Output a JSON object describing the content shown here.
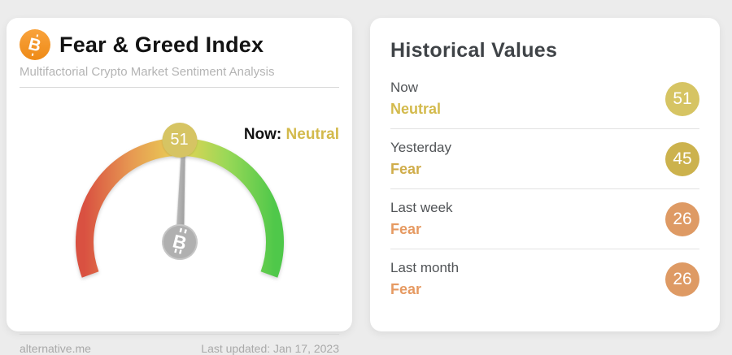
{
  "page": {
    "background_color": "#ececec"
  },
  "gauge_card": {
    "title": "Fear & Greed Index",
    "subtitle": "Multifactorial Crypto Market Sentiment Analysis",
    "now_label": "Now:",
    "now_sentiment": "Neutral",
    "now_sentiment_color": "#d3ba4c",
    "value": 51,
    "value_badge_color": "#d6c463",
    "footer_left": "alternative.me",
    "footer_right": "Last updated: Jan 17, 2023",
    "bitcoin_brand_color": "#f7931a",
    "needle_color": "#ababab",
    "hub_color": "#b0b0b0"
  },
  "history_card": {
    "title": "Historical Values",
    "rows": [
      {
        "label": "Now",
        "sentiment": "Neutral",
        "value": 51,
        "sentiment_color": "#d3ba4c",
        "badge_color": "#d6c463"
      },
      {
        "label": "Yesterday",
        "sentiment": "Fear",
        "value": 45,
        "sentiment_color": "#d0ad4b",
        "badge_color": "#ccb24d"
      },
      {
        "label": "Last week",
        "sentiment": "Fear",
        "value": 26,
        "sentiment_color": "#e69a62",
        "badge_color": "#de9a64"
      },
      {
        "label": "Last month",
        "sentiment": "Fear",
        "value": 26,
        "sentiment_color": "#e69a62",
        "badge_color": "#de9a64"
      }
    ]
  },
  "chart_data": {
    "type": "gauge",
    "title": "Fear & Greed Index",
    "subtitle": "Multifactorial Crypto Market Sentiment Analysis",
    "value": 51,
    "sentiment": "Neutral",
    "range": [
      0,
      100
    ],
    "arc_span_degrees": 220,
    "scale_gradient": [
      "#d95141",
      "#e79a52",
      "#e8d355",
      "#99d857",
      "#4fc84a"
    ],
    "last_updated": "Jan 17, 2023",
    "source": "alternative.me",
    "historical": [
      {
        "period": "Now",
        "value": 51,
        "sentiment": "Neutral"
      },
      {
        "period": "Yesterday",
        "value": 45,
        "sentiment": "Fear"
      },
      {
        "period": "Last week",
        "value": 26,
        "sentiment": "Fear"
      },
      {
        "period": "Last month",
        "value": 26,
        "sentiment": "Fear"
      }
    ]
  }
}
